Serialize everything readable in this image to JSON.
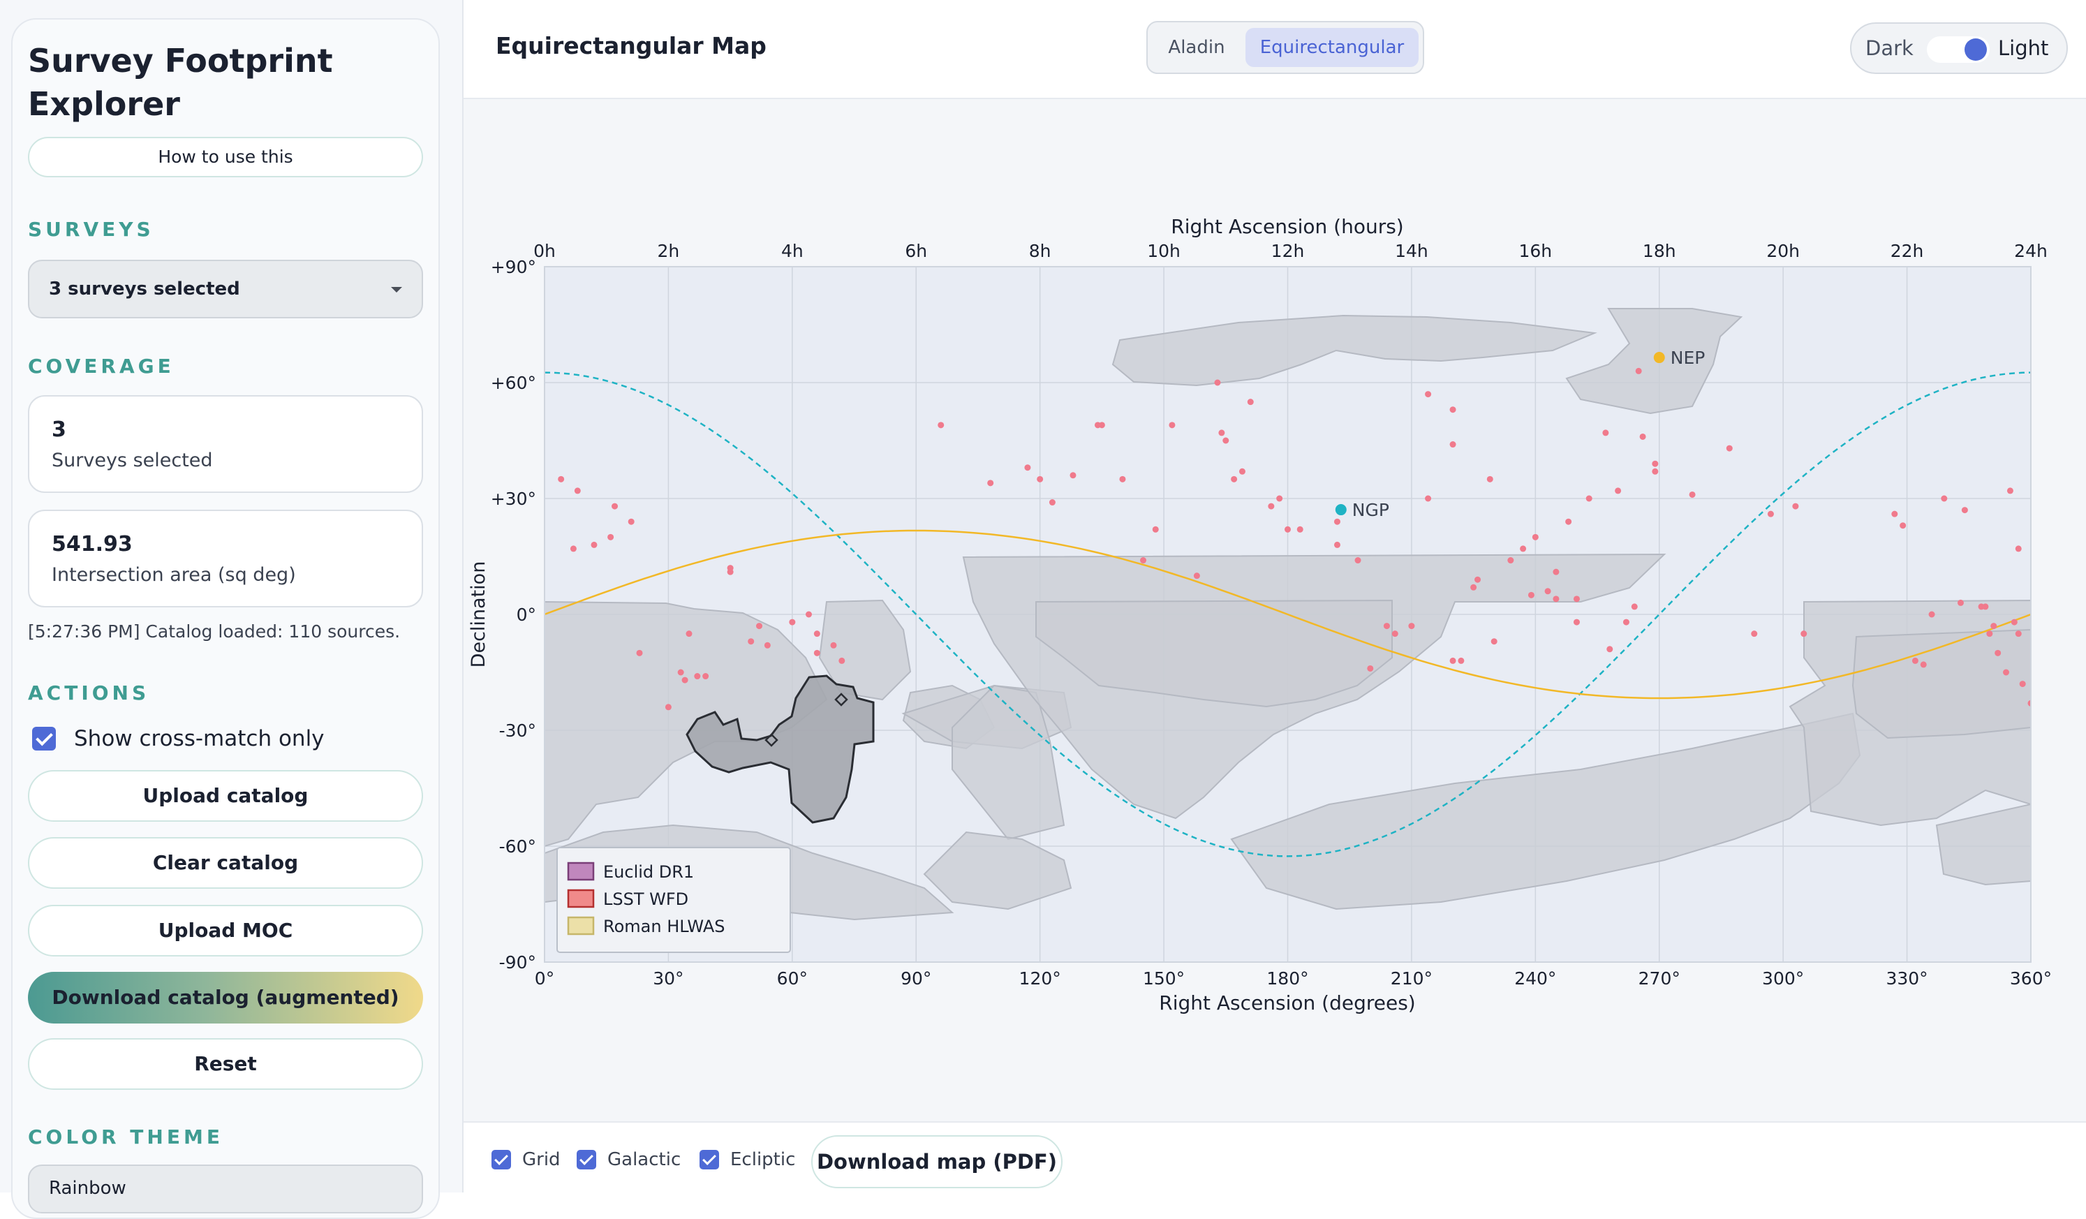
{
  "sidebar": {
    "title": "Survey Footprint Explorer",
    "help_label": "How to use this",
    "surveys": {
      "heading": "SURVEYS",
      "selected_label": "3 surveys selected"
    },
    "coverage": {
      "heading": "COVERAGE",
      "count_value": "3",
      "count_label": "Surveys selected",
      "area_value": "541.93",
      "area_label": "Intersection area (sq deg)"
    },
    "log_text": "[5:27:36 PM] Catalog loaded: 110 sources.",
    "actions": {
      "heading": "ACTIONS",
      "crossmatch_label": "Show cross-match only",
      "crossmatch_checked": true,
      "upload_catalog": "Upload catalog",
      "clear_catalog": "Clear catalog",
      "upload_moc": "Upload MOC",
      "download_catalog": "Download catalog (augmented)",
      "reset": "Reset"
    },
    "color_theme": {
      "heading": "COLOR THEME",
      "value": "Rainbow"
    }
  },
  "header": {
    "view_title": "Equirectangular Map",
    "projection_tabs": [
      "Aladin",
      "Equirectangular"
    ],
    "active_projection": "Equirectangular",
    "theme_toggle": {
      "dark_label": "Dark",
      "light_label": "Light",
      "state": "light"
    }
  },
  "map": {
    "top_axis_title": "Right Ascension (hours)",
    "bottom_axis_title": "Right Ascension (degrees)",
    "y_axis_title": "Declination",
    "hour_ticks": [
      "0h",
      "2h",
      "4h",
      "6h",
      "8h",
      "10h",
      "12h",
      "14h",
      "16h",
      "18h",
      "20h",
      "22h",
      "24h"
    ],
    "degree_ticks": [
      "0°",
      "30°",
      "60°",
      "90°",
      "120°",
      "150°",
      "180°",
      "210°",
      "240°",
      "270°",
      "300°",
      "330°",
      "360°"
    ],
    "dec_ticks": [
      "+90°",
      "+60°",
      "+30°",
      "0°",
      "-30°",
      "-60°",
      "-90°"
    ],
    "markers": [
      {
        "label": "NEP",
        "ra": 270,
        "dec": 66.5,
        "color": "#f2b827"
      },
      {
        "label": "NGP",
        "ra": 192.9,
        "dec": 27.1,
        "color": "#1fb3c4"
      }
    ],
    "legend": [
      {
        "label": "Euclid DR1",
        "color": "#c087bd",
        "border": "#7a3f78"
      },
      {
        "label": "LSST WFD",
        "color": "#f08a8a",
        "border": "#b43030"
      },
      {
        "label": "Roman HLWAS",
        "color": "#ece0a8",
        "border": "#c6b66a"
      }
    ],
    "colors": {
      "ecliptic": "#f2b827",
      "galactic": "#1fb3c4",
      "sources": "#f07a8c",
      "footprint": "#bfc4cc"
    }
  },
  "footer": {
    "grid_label": "Grid",
    "grid_checked": true,
    "galactic_label": "Galactic",
    "galactic_checked": true,
    "ecliptic_label": "Ecliptic",
    "ecliptic_checked": true,
    "download_map": "Download map (PDF)"
  }
}
